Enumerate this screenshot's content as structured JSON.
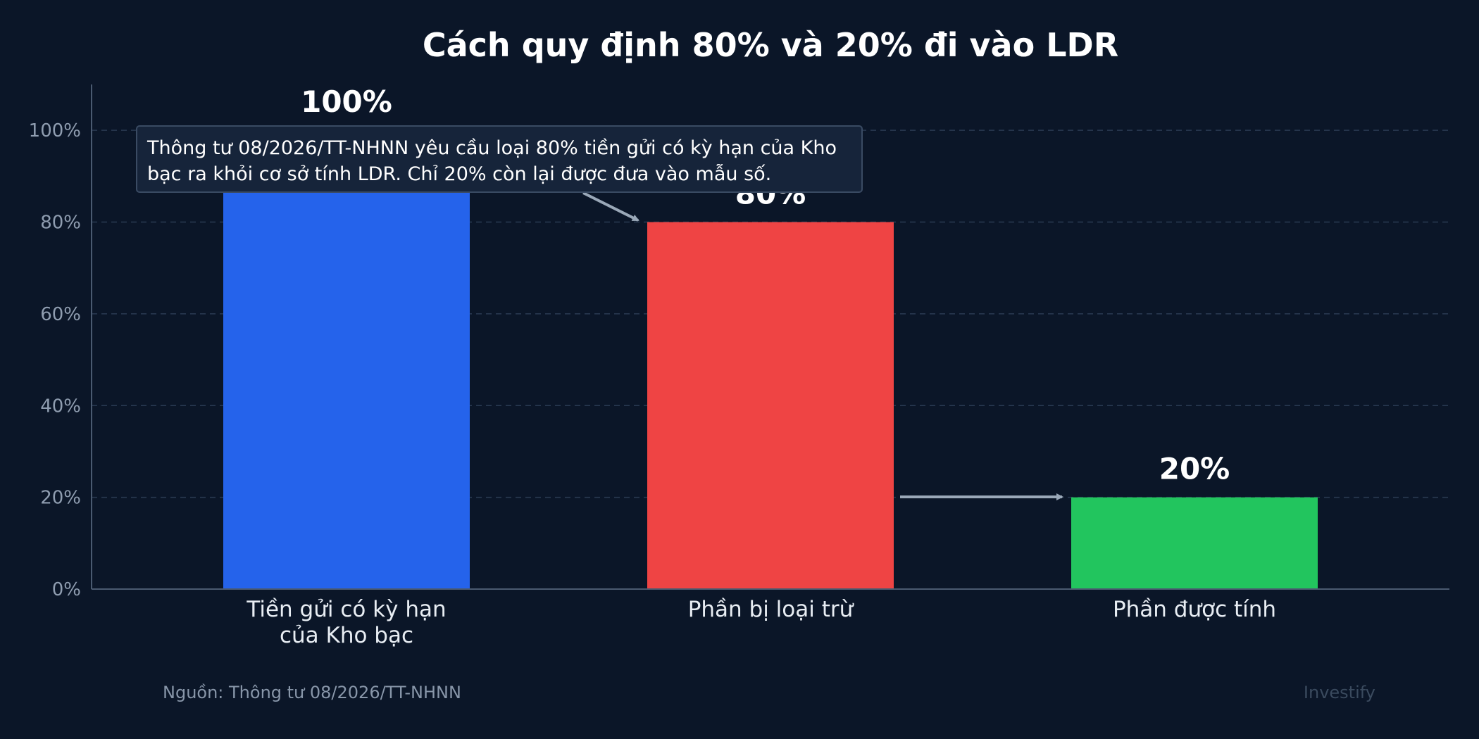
{
  "title": "Cách quy định 80% và 20% đi vào LDR",
  "chart_data": {
    "type": "bar",
    "categories": [
      "Tiền gửi có kỳ hạn\ncủa Kho bạc",
      "Phần bị loại trừ",
      "Phần được tính"
    ],
    "values": [
      100,
      80,
      20
    ],
    "value_labels": [
      "100%",
      "80%",
      "20%"
    ],
    "colors": [
      "#2563eb",
      "#ef4444",
      "#22c55e"
    ],
    "ylim": [
      0,
      110
    ],
    "yticks": [
      0,
      20,
      40,
      60,
      80,
      100
    ],
    "ytick_labels": [
      "0%",
      "20%",
      "40%",
      "60%",
      "80%",
      "100%"
    ],
    "xlabel": "",
    "ylabel": "",
    "grid": true,
    "annotation": "Thông tư 08/2026/TT-NHNN yêu cầu loại 80% tiền gửi có kỳ hạn của Kho bạc ra khỏi cơ sở tính LDR. Chỉ 20% còn lại được đưa vào mẫu số."
  },
  "source": "Nguồn: Thông tư 08/2026/TT-NHNN",
  "watermark": "Investify",
  "colors": {
    "background": "#0b1628",
    "grid": "#2a3a52",
    "axis": "#4a5a70",
    "arrow": "#9aa8b8"
  }
}
